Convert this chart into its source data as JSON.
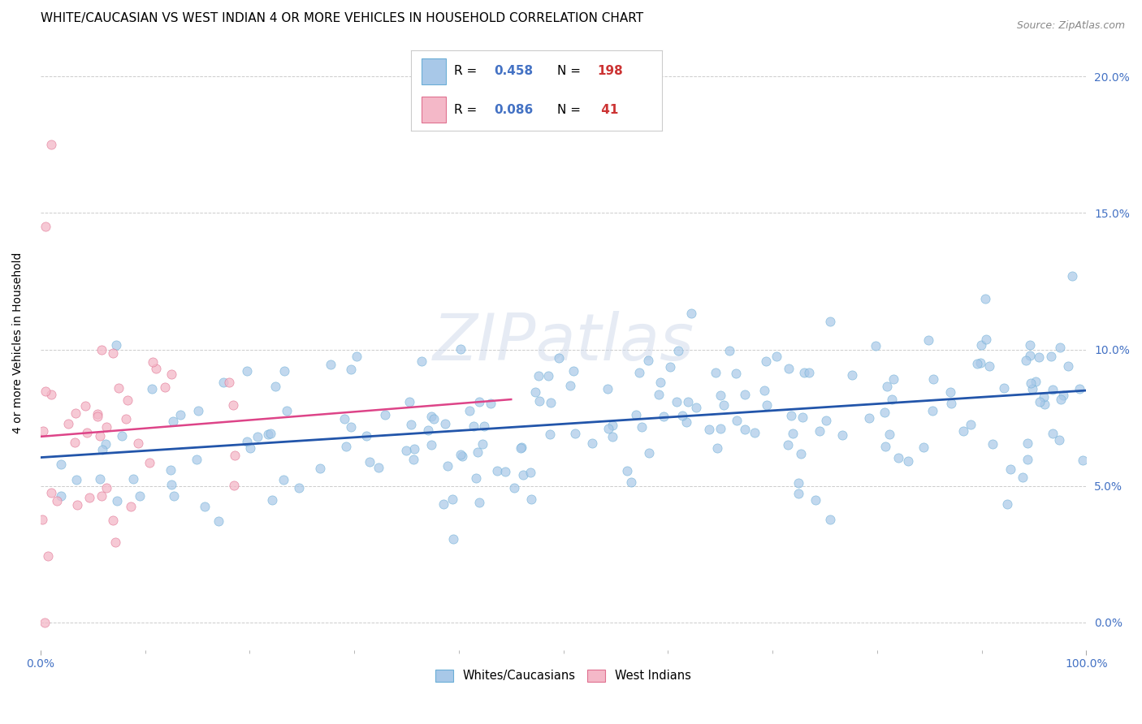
{
  "title": "WHITE/CAUCASIAN VS WEST INDIAN 4 OR MORE VEHICLES IN HOUSEHOLD CORRELATION CHART",
  "source": "Source: ZipAtlas.com",
  "ylabel": "4 or more Vehicles in Household",
  "xlim": [
    0,
    1.0
  ],
  "ylim": [
    -0.01,
    0.215
  ],
  "yticks": [
    0.0,
    0.05,
    0.1,
    0.15,
    0.2
  ],
  "ytick_labels": [
    "0.0%",
    "5.0%",
    "10.0%",
    "15.0%",
    "20.0%"
  ],
  "xtick_positions": [
    0.0,
    1.0
  ],
  "xtick_labels": [
    "0.0%",
    "100.0%"
  ],
  "xtick_minor_positions": [
    0.1,
    0.2,
    0.3,
    0.4,
    0.5,
    0.6,
    0.7,
    0.8,
    0.9
  ],
  "white_color": "#a8c8e8",
  "white_edge_color": "#6baed6",
  "west_indian_color": "#f4b8c8",
  "west_indian_edge_color": "#e07090",
  "white_line_color": "#2255aa",
  "west_indian_line_color": "#dd4488",
  "white_R": 0.458,
  "white_N": 198,
  "west_indian_R": 0.086,
  "west_indian_N": 41,
  "watermark": "ZIPatlas",
  "legend_labels": [
    "Whites/Caucasians",
    "West Indians"
  ],
  "title_fontsize": 11,
  "axis_label_fontsize": 10,
  "tick_fontsize": 10,
  "right_tick_color": "#4472c4",
  "legend_R_color": "#4472c4",
  "legend_N_color": "#cc3333",
  "seed": 42
}
